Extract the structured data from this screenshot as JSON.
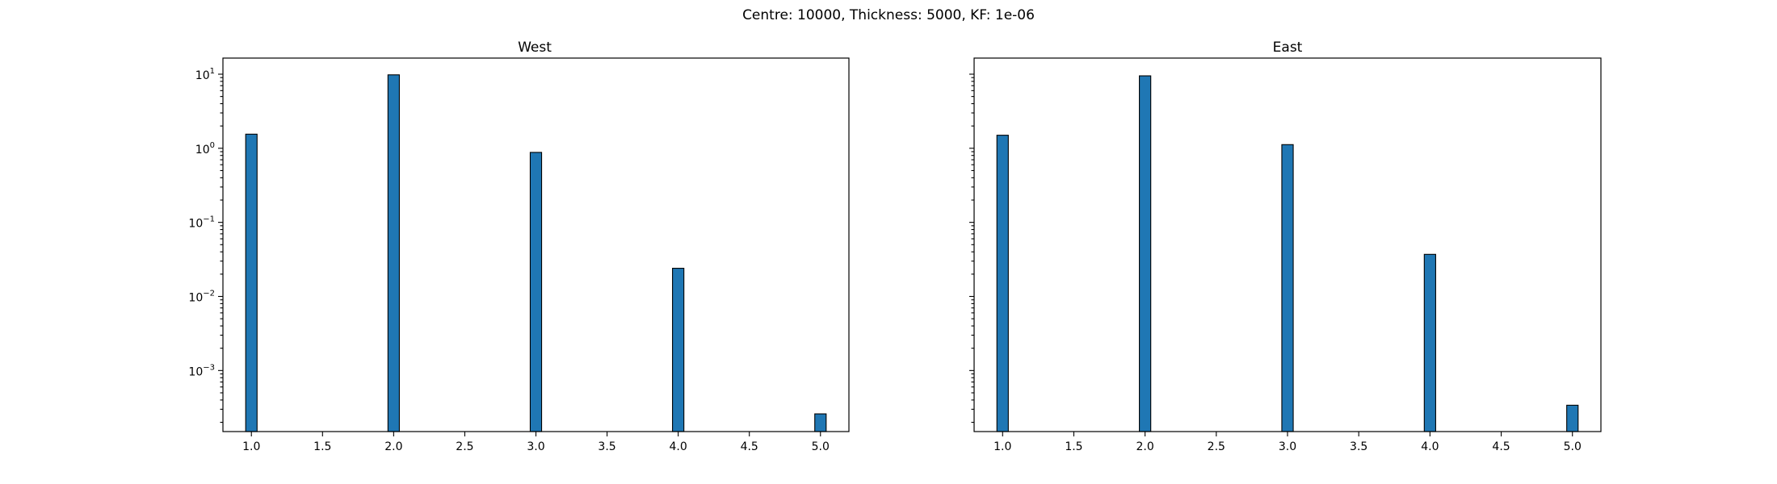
{
  "figure": {
    "suptitle": "Centre: 10000, Thickness: 5000, KF: 1e-06"
  },
  "chart_data": [
    {
      "type": "bar",
      "title": "West",
      "xlabel": "",
      "ylabel": "",
      "x": [
        1.0,
        2.0,
        3.0,
        4.0,
        5.0
      ],
      "values": [
        1.55,
        9.8,
        0.88,
        0.024,
        0.00026
      ],
      "xlim": [
        0.8,
        5.2
      ],
      "xticks": [
        1.0,
        1.5,
        2.0,
        2.5,
        3.0,
        3.5,
        4.0,
        4.5,
        5.0
      ],
      "xtick_labels": [
        "1.0",
        "1.5",
        "2.0",
        "2.5",
        "3.0",
        "3.5",
        "4.0",
        "4.5",
        "5.0"
      ],
      "yscale": "log",
      "ylim": [
        0.00015,
        16.5
      ],
      "yticks": [
        0.001,
        0.01,
        0.1,
        1,
        10
      ],
      "ytick_labels": [
        {
          "base": "10",
          "exp": "−3"
        },
        {
          "base": "10",
          "exp": "−2"
        },
        {
          "base": "10",
          "exp": "−1"
        },
        {
          "base": "10",
          "exp": "0"
        },
        {
          "base": "10",
          "exp": "1"
        }
      ],
      "show_ytick_labels": true,
      "bar_color": "#1f77b4",
      "edge_color": "#000000",
      "grid": false,
      "legend": "none"
    },
    {
      "type": "bar",
      "title": "East",
      "xlabel": "",
      "ylabel": "",
      "x": [
        1.0,
        2.0,
        3.0,
        4.0,
        5.0
      ],
      "values": [
        1.5,
        9.5,
        1.12,
        0.037,
        0.00034
      ],
      "xlim": [
        0.8,
        5.2
      ],
      "xticks": [
        1.0,
        1.5,
        2.0,
        2.5,
        3.0,
        3.5,
        4.0,
        4.5,
        5.0
      ],
      "xtick_labels": [
        "1.0",
        "1.5",
        "2.0",
        "2.5",
        "3.0",
        "3.5",
        "4.0",
        "4.5",
        "5.0"
      ],
      "yscale": "log",
      "ylim": [
        0.00015,
        16.5
      ],
      "yticks": [
        0.001,
        0.01,
        0.1,
        1,
        10
      ],
      "ytick_labels": [],
      "show_ytick_labels": false,
      "bar_color": "#1f77b4",
      "edge_color": "#000000",
      "grid": false,
      "legend": "none"
    }
  ]
}
